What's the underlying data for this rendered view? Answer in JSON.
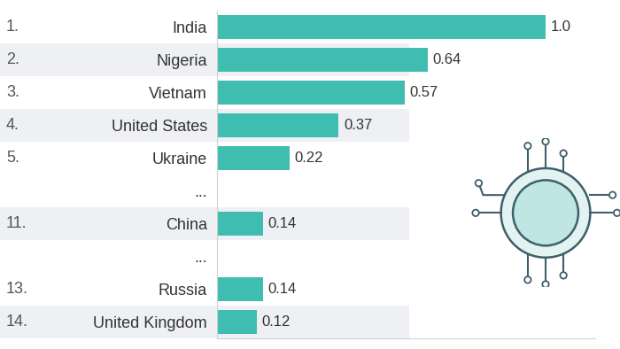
{
  "chart_data": {
    "type": "bar",
    "orientation": "horizontal",
    "categories": [
      "India",
      "Nigeria",
      "Vietnam",
      "United States",
      "Ukraine",
      "...",
      "China",
      "...",
      "Russia",
      "United Kingdom"
    ],
    "ranks": [
      "1.",
      "2.",
      "3.",
      "4.",
      "5.",
      null,
      "11.",
      null,
      "13.",
      "14."
    ],
    "values": [
      1.0,
      0.64,
      0.57,
      0.37,
      0.22,
      null,
      0.14,
      null,
      0.14,
      0.12
    ],
    "color": "#3fbdb0",
    "xlim": [
      0,
      1.15
    ],
    "data_labels": true,
    "tick_labels": "y",
    "grid": false
  }
}
